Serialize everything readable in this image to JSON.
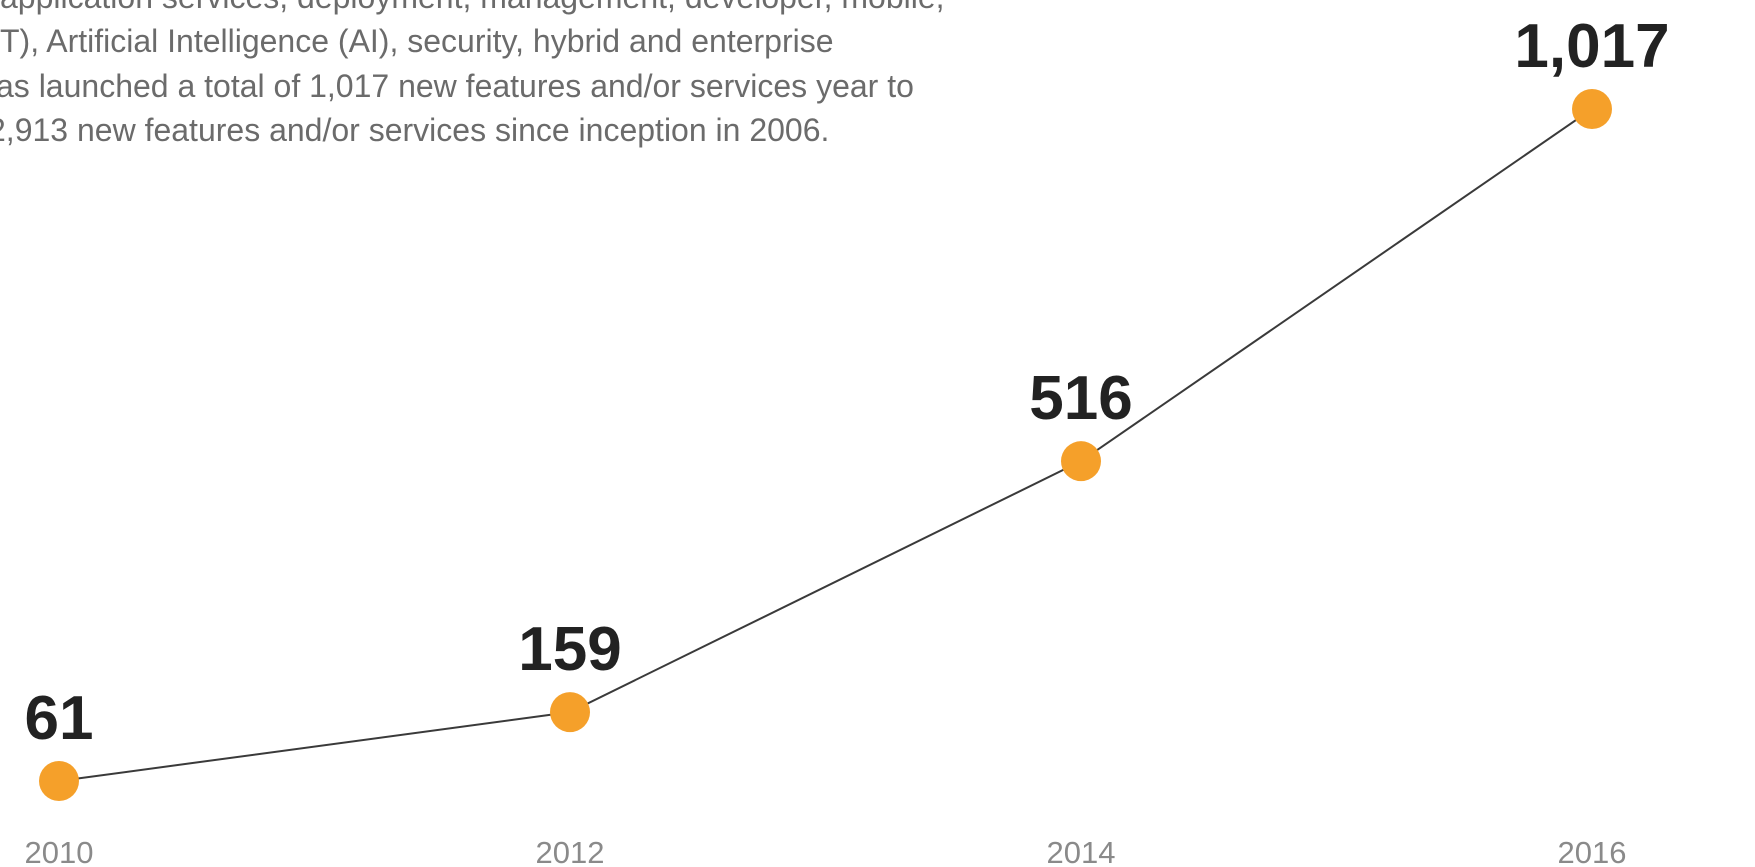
{
  "chart_data": {
    "type": "line",
    "description": [
      "application services, deployment, management, developer, mobile,",
      "T), Artificial Intelligence (AI), security, hybrid and enterprise",
      "as launched a total of 1,017 new features and/or services year to",
      "2,913 new features and/or services since inception in 2006."
    ],
    "x": [
      2010,
      2012,
      2014,
      2016
    ],
    "xlim": [
      2010,
      2016
    ],
    "xticks": [
      2010,
      2012,
      2014,
      2016
    ],
    "series": [
      {
        "color": "#f5a02a",
        "values": [
          61,
          159,
          516,
          1017
        ],
        "value_labels": [
          "61",
          "159",
          "516",
          "1,017"
        ]
      }
    ],
    "line_color": "#3a3a3a"
  }
}
